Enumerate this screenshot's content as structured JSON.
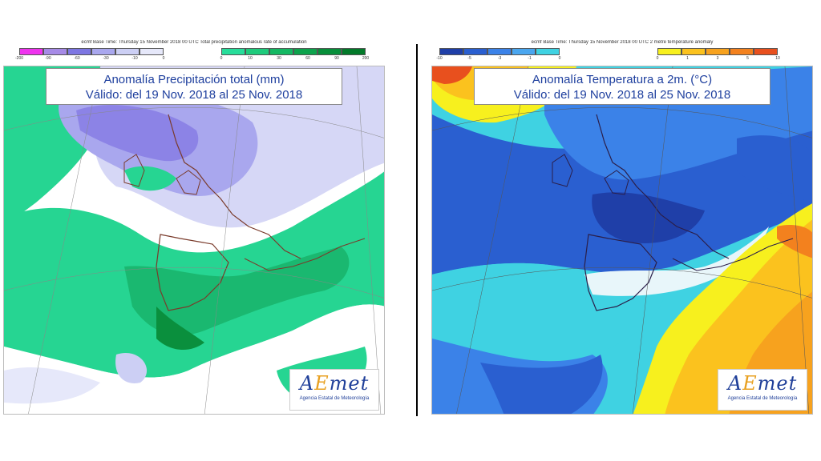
{
  "left_panel": {
    "header": "ecmf  Base Time: Thursday 15 November 2018 00 UTC Total precipitation anomalous rate of accumulation",
    "legend_negative": {
      "colors": [
        "#ee33ee",
        "#a68ae6",
        "#7d76e2",
        "#a9a7ee",
        "#cccff4",
        "#e6e8fa"
      ],
      "ticks": [
        "-200",
        "-90",
        "-60",
        "-30",
        "-10",
        "0"
      ]
    },
    "legend_positive": {
      "colors": [
        "#27dd9a",
        "#1ecb7c",
        "#14b862",
        "#0da34c",
        "#078f3a",
        "#037a2a"
      ],
      "ticks": [
        "0",
        "10",
        "30",
        "60",
        "90",
        "200"
      ]
    },
    "title_line1": "Anomalía Precipitación total (mm)",
    "title_line2": "Válido: del 19 Nov. 2018 al 25 Nov. 2018",
    "logo": {
      "prefix": "A",
      "accent": "E",
      "suffix": "met",
      "subtitle": "Agencia Estatal de Meteorología"
    }
  },
  "right_panel": {
    "header": "ecmf  Base Time: Thursday 15 November 2018 00 UTC 2 metre temperature anomaly",
    "legend_negative": {
      "colors": [
        "#1f3fa8",
        "#2a5fd0",
        "#3b82e8",
        "#4aa6ef",
        "#3fd2e2"
      ],
      "ticks": [
        "-10",
        "-5",
        "-3",
        "-1",
        "0"
      ]
    },
    "legend_positive": {
      "colors": [
        "#f7f01e",
        "#fbc21e",
        "#f7a21e",
        "#f3811e",
        "#e8501e"
      ],
      "ticks": [
        "0",
        "1",
        "3",
        "5",
        "10"
      ]
    },
    "title_line1": "Anomalía Temperatura a 2m. (°C)",
    "title_line2": "Válido: del 19 Nov. 2018 al 25 Nov. 2018",
    "logo": {
      "prefix": "A",
      "accent": "E",
      "suffix": "met",
      "subtitle": "Agencia Estatal de Meteorología"
    }
  }
}
